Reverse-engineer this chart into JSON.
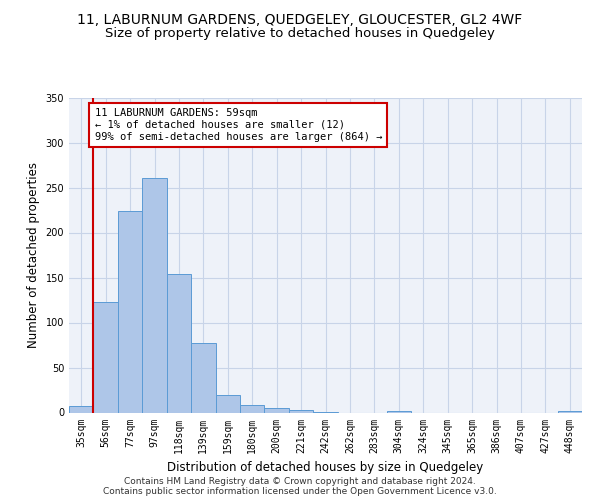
{
  "title": "11, LABURNUM GARDENS, QUEDGELEY, GLOUCESTER, GL2 4WF",
  "subtitle": "Size of property relative to detached houses in Quedgeley",
  "xlabel": "Distribution of detached houses by size in Quedgeley",
  "ylabel": "Number of detached properties",
  "bin_labels": [
    "35sqm",
    "56sqm",
    "77sqm",
    "97sqm",
    "118sqm",
    "139sqm",
    "159sqm",
    "180sqm",
    "200sqm",
    "221sqm",
    "242sqm",
    "262sqm",
    "283sqm",
    "304sqm",
    "324sqm",
    "345sqm",
    "365sqm",
    "386sqm",
    "407sqm",
    "427sqm",
    "448sqm"
  ],
  "bar_values": [
    7,
    123,
    224,
    261,
    154,
    77,
    20,
    8,
    5,
    3,
    1,
    0,
    0,
    2,
    0,
    0,
    0,
    0,
    0,
    0,
    2
  ],
  "bar_color": "#aec6e8",
  "bar_edge_color": "#5b9bd5",
  "highlight_line_color": "#cc0000",
  "annotation_text": "11 LABURNUM GARDENS: 59sqm\n← 1% of detached houses are smaller (12)\n99% of semi-detached houses are larger (864) →",
  "annotation_box_color": "#ffffff",
  "annotation_box_edge": "#cc0000",
  "ylim": [
    0,
    350
  ],
  "yticks": [
    0,
    50,
    100,
    150,
    200,
    250,
    300,
    350
  ],
  "footer": "Contains HM Land Registry data © Crown copyright and database right 2024.\nContains public sector information licensed under the Open Government Licence v3.0.",
  "bg_color": "#eef2f9",
  "grid_color": "#c8d4e8",
  "title_fontsize": 10,
  "subtitle_fontsize": 9.5,
  "axis_fontsize": 8.5,
  "tick_fontsize": 7,
  "footer_fontsize": 6.5,
  "annotation_fontsize": 7.5
}
